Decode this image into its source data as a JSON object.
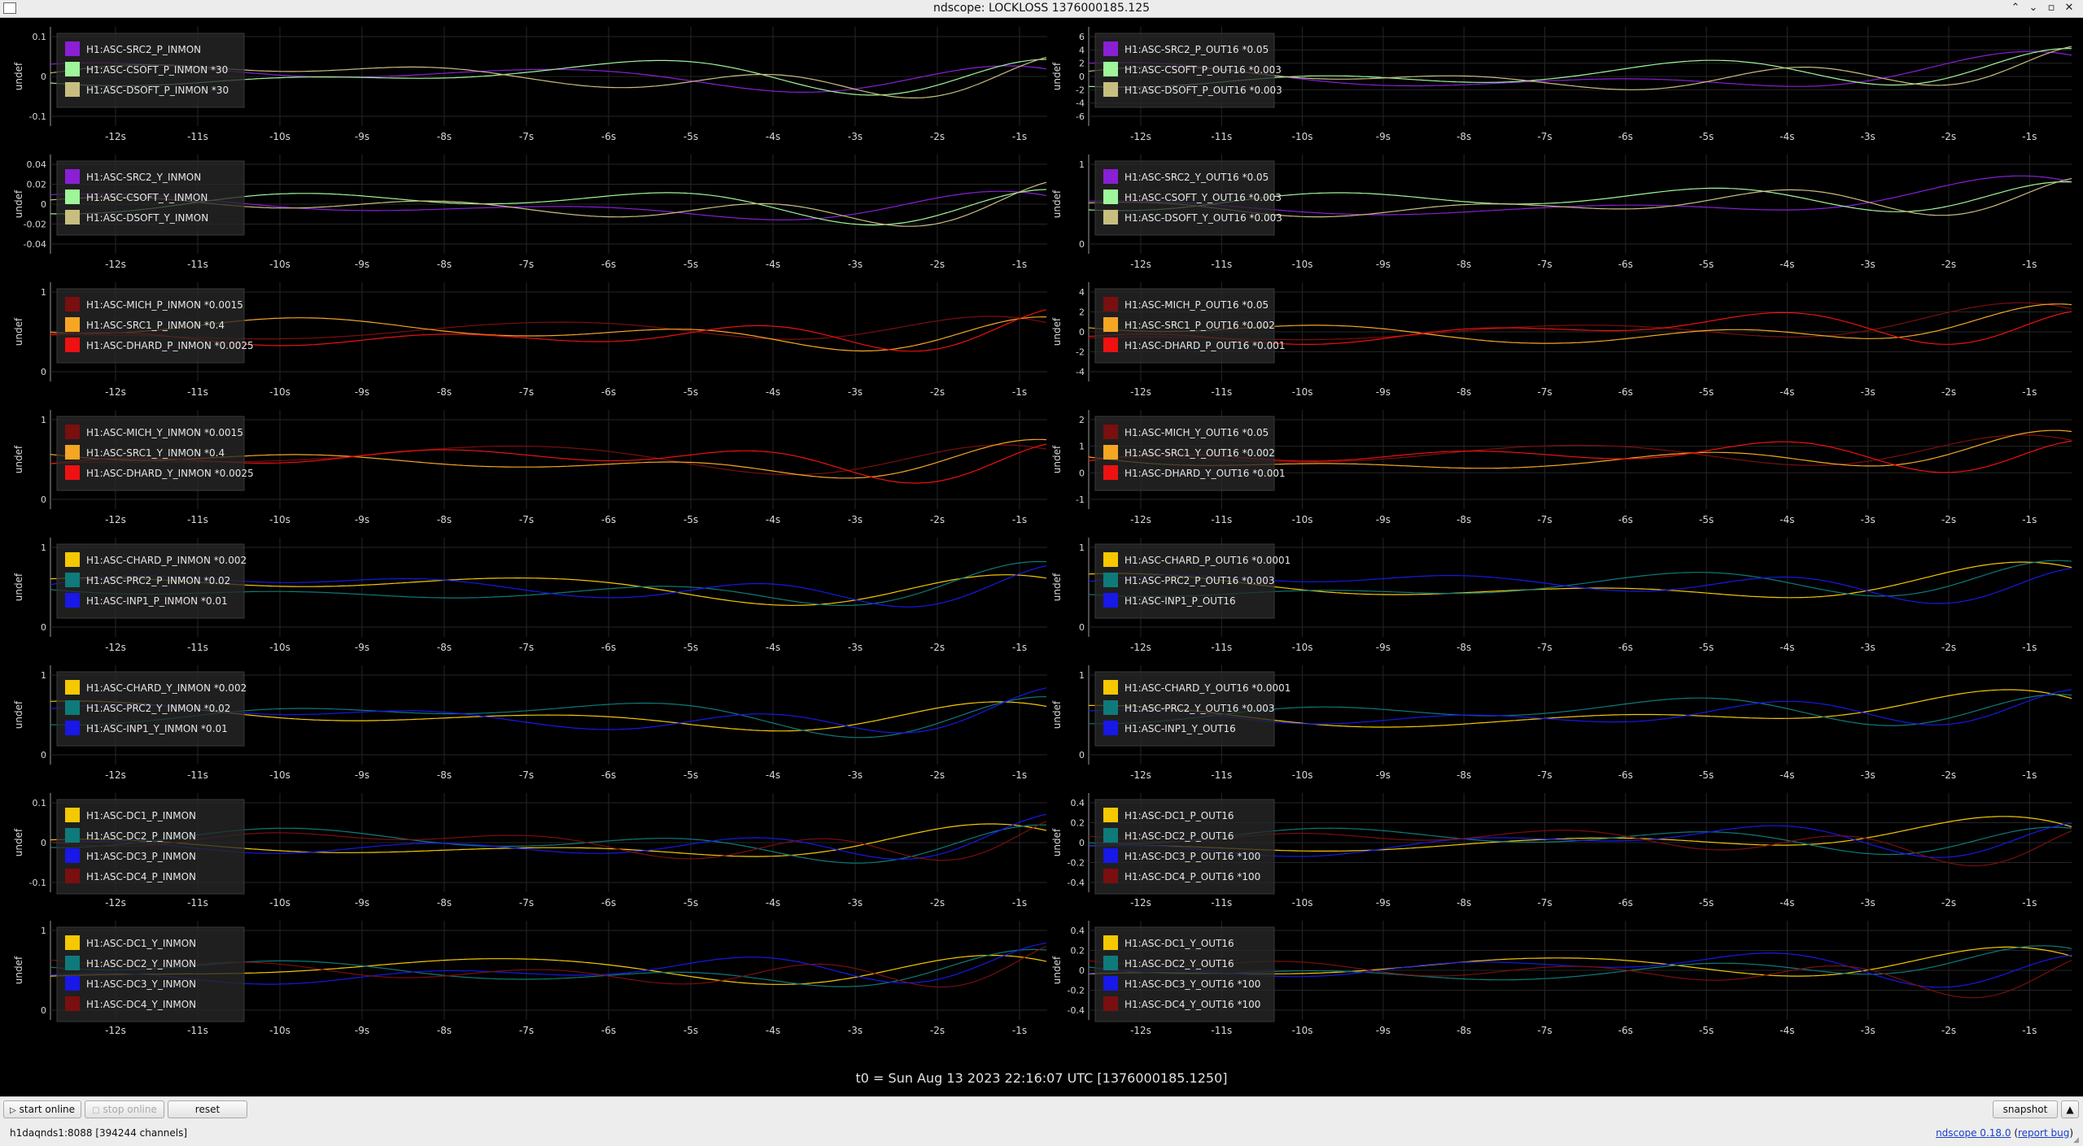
{
  "window": {
    "title": "ndscope: LOCKLOSS 1376000185.125",
    "buttons": {
      "shade": "⌃",
      "minimize": "⌄",
      "maximize": "▫",
      "close": "✕"
    }
  },
  "axis_label": "undef",
  "time_ticks": [
    "-12s",
    "-11s",
    "-10s",
    "-9s",
    "-8s",
    "-7s",
    "-6s",
    "-5s",
    "-4s",
    "-3s",
    "-2s",
    "-1s"
  ],
  "t0_label": "t0 = Sun Aug 13 2023 22:16:07 UTC [1376000185.1250]",
  "controls": {
    "start_online": "start online",
    "stop_online": "stop online",
    "reset": "reset",
    "snapshot": "snapshot"
  },
  "status": {
    "server": "h1daqnds1:8088  [394244 channels]",
    "version": "ndscope 0.18.0",
    "report": "report bug"
  },
  "colors": {
    "purple": "#8a1fd6",
    "green": "#9ff59a",
    "khaki": "#c8be80",
    "maroon": "#7a0f0f",
    "orange": "#f5a623",
    "red": "#ee1111",
    "yellow": "#f5c800",
    "teal": "#0f7a7a",
    "blue": "#1818e8",
    "background": "#000000",
    "grid": "#262626"
  },
  "chart_data": [
    {
      "type": "line",
      "position": "row1-left",
      "yticks": [
        "0.1",
        "0",
        "-0.1"
      ],
      "series": [
        {
          "name": "H1:ASC-SRC2_P_INMON",
          "color": "purple"
        },
        {
          "name": "H1:ASC-CSOFT_P_INMON *30",
          "color": "green"
        },
        {
          "name": "H1:ASC-DSOFT_P_INMON *30",
          "color": "khaki"
        }
      ]
    },
    {
      "type": "line",
      "position": "row1-right",
      "yticks": [
        "6",
        "4",
        "2",
        "0",
        "-2",
        "-4",
        "-6"
      ],
      "series": [
        {
          "name": "H1:ASC-SRC2_P_OUT16 *0.05",
          "color": "purple"
        },
        {
          "name": "H1:ASC-CSOFT_P_OUT16 *0.003",
          "color": "green"
        },
        {
          "name": "H1:ASC-DSOFT_P_OUT16 *0.003",
          "color": "khaki"
        }
      ]
    },
    {
      "type": "line",
      "position": "row2-left",
      "yticks": [
        "0.04",
        "0.02",
        "0",
        "-0.02",
        "-0.04"
      ],
      "series": [
        {
          "name": "H1:ASC-SRC2_Y_INMON",
          "color": "purple"
        },
        {
          "name": "H1:ASC-CSOFT_Y_INMON",
          "color": "green"
        },
        {
          "name": "H1:ASC-DSOFT_Y_INMON",
          "color": "khaki"
        }
      ]
    },
    {
      "type": "line",
      "position": "row2-right",
      "yticks": [
        "1",
        "0"
      ],
      "series": [
        {
          "name": "H1:ASC-SRC2_Y_OUT16 *0.05",
          "color": "purple"
        },
        {
          "name": "H1:ASC-CSOFT_Y_OUT16 *0.003",
          "color": "green"
        },
        {
          "name": "H1:ASC-DSOFT_Y_OUT16 *0.003",
          "color": "khaki"
        }
      ]
    },
    {
      "type": "line",
      "position": "row3-left",
      "yticks": [
        "1",
        "0"
      ],
      "series": [
        {
          "name": "H1:ASC-MICH_P_INMON *0.0015",
          "color": "maroon"
        },
        {
          "name": "H1:ASC-SRC1_P_INMON *0.4",
          "color": "orange"
        },
        {
          "name": "H1:ASC-DHARD_P_INMON *0.0025",
          "color": "red"
        }
      ]
    },
    {
      "type": "line",
      "position": "row3-right",
      "yticks": [
        "4",
        "2",
        "0",
        "-2",
        "-4"
      ],
      "series": [
        {
          "name": "H1:ASC-MICH_P_OUT16 *0.05",
          "color": "maroon"
        },
        {
          "name": "H1:ASC-SRC1_P_OUT16 *0.002",
          "color": "orange"
        },
        {
          "name": "H1:ASC-DHARD_P_OUT16 *0.001",
          "color": "red"
        }
      ]
    },
    {
      "type": "line",
      "position": "row4-left",
      "yticks": [
        "1",
        "0"
      ],
      "series": [
        {
          "name": "H1:ASC-MICH_Y_INMON *0.0015",
          "color": "maroon"
        },
        {
          "name": "H1:ASC-SRC1_Y_INMON *0.4",
          "color": "orange"
        },
        {
          "name": "H1:ASC-DHARD_Y_INMON *0.0025",
          "color": "red"
        }
      ]
    },
    {
      "type": "line",
      "position": "row4-right",
      "yticks": [
        "2",
        "1",
        "0",
        "-1"
      ],
      "series": [
        {
          "name": "H1:ASC-MICH_Y_OUT16 *0.05",
          "color": "maroon"
        },
        {
          "name": "H1:ASC-SRC1_Y_OUT16 *0.002",
          "color": "orange"
        },
        {
          "name": "H1:ASC-DHARD_Y_OUT16 *0.001",
          "color": "red"
        }
      ]
    },
    {
      "type": "line",
      "position": "row5-left",
      "yticks": [
        "1",
        "0"
      ],
      "series": [
        {
          "name": "H1:ASC-CHARD_P_INMON *0.002",
          "color": "yellow"
        },
        {
          "name": "H1:ASC-PRC2_P_INMON *0.02",
          "color": "teal"
        },
        {
          "name": "H1:ASC-INP1_P_INMON *0.01",
          "color": "blue"
        }
      ]
    },
    {
      "type": "line",
      "position": "row5-right",
      "yticks": [
        "1",
        "0"
      ],
      "series": [
        {
          "name": "H1:ASC-CHARD_P_OUT16 *0.0001",
          "color": "yellow"
        },
        {
          "name": "H1:ASC-PRC2_P_OUT16 *0.003",
          "color": "teal"
        },
        {
          "name": "H1:ASC-INP1_P_OUT16",
          "color": "blue"
        }
      ]
    },
    {
      "type": "line",
      "position": "row6-left",
      "yticks": [
        "1",
        "0"
      ],
      "series": [
        {
          "name": "H1:ASC-CHARD_Y_INMON *0.002",
          "color": "yellow"
        },
        {
          "name": "H1:ASC-PRC2_Y_INMON *0.02",
          "color": "teal"
        },
        {
          "name": "H1:ASC-INP1_Y_INMON *0.01",
          "color": "blue"
        }
      ]
    },
    {
      "type": "line",
      "position": "row6-right",
      "yticks": [
        "1",
        "0"
      ],
      "series": [
        {
          "name": "H1:ASC-CHARD_Y_OUT16 *0.0001",
          "color": "yellow"
        },
        {
          "name": "H1:ASC-PRC2_Y_OUT16 *0.003",
          "color": "teal"
        },
        {
          "name": "H1:ASC-INP1_Y_OUT16",
          "color": "blue"
        }
      ]
    },
    {
      "type": "line",
      "position": "row7-left",
      "yticks": [
        "0.1",
        "0",
        "-0.1"
      ],
      "series": [
        {
          "name": "H1:ASC-DC1_P_INMON",
          "color": "yellow"
        },
        {
          "name": "H1:ASC-DC2_P_INMON",
          "color": "teal"
        },
        {
          "name": "H1:ASC-DC3_P_INMON",
          "color": "blue"
        },
        {
          "name": "H1:ASC-DC4_P_INMON",
          "color": "maroon"
        }
      ]
    },
    {
      "type": "line",
      "position": "row7-right",
      "yticks": [
        "0.4",
        "0.2",
        "0",
        "-0.2",
        "-0.4"
      ],
      "series": [
        {
          "name": "H1:ASC-DC1_P_OUT16",
          "color": "yellow"
        },
        {
          "name": "H1:ASC-DC2_P_OUT16",
          "color": "teal"
        },
        {
          "name": "H1:ASC-DC3_P_OUT16 *100",
          "color": "blue"
        },
        {
          "name": "H1:ASC-DC4_P_OUT16 *100",
          "color": "maroon"
        }
      ]
    },
    {
      "type": "line",
      "position": "row8-left",
      "yticks": [
        "1",
        "0"
      ],
      "series": [
        {
          "name": "H1:ASC-DC1_Y_INMON",
          "color": "yellow"
        },
        {
          "name": "H1:ASC-DC2_Y_INMON",
          "color": "teal"
        },
        {
          "name": "H1:ASC-DC3_Y_INMON",
          "color": "blue"
        },
        {
          "name": "H1:ASC-DC4_Y_INMON",
          "color": "maroon"
        }
      ]
    },
    {
      "type": "line",
      "position": "row8-right",
      "yticks": [
        "0.4",
        "0.2",
        "0",
        "-0.2",
        "-0.4"
      ],
      "series": [
        {
          "name": "H1:ASC-DC1_Y_OUT16",
          "color": "yellow"
        },
        {
          "name": "H1:ASC-DC2_Y_OUT16",
          "color": "teal"
        },
        {
          "name": "H1:ASC-DC3_Y_OUT16 *100",
          "color": "blue"
        },
        {
          "name": "H1:ASC-DC4_Y_OUT16 *100",
          "color": "maroon"
        }
      ]
    }
  ]
}
